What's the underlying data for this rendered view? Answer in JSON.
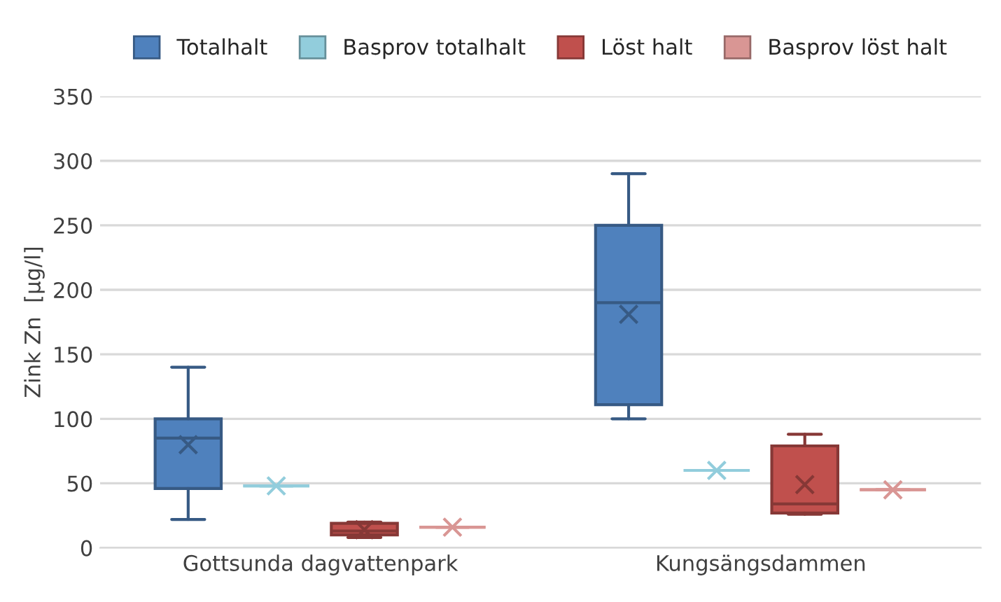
{
  "chart_data": {
    "type": "box",
    "ylabel": "Zink Zn  [µg/l]",
    "categories": [
      "Gottsunda dagvattenpark",
      "Kungsängsdammen"
    ],
    "series": [
      {
        "name": "Totalhalt",
        "color": "#4f81bd",
        "boxes": [
          {
            "low": 22,
            "q1": 46,
            "median": 85,
            "q3": 100,
            "high": 140,
            "mean": 80
          },
          {
            "low": 100,
            "q1": 111,
            "median": 190,
            "q3": 250,
            "high": 290,
            "mean": 181
          }
        ]
      },
      {
        "name": "Basprov totalhalt",
        "color": "#92cddc",
        "boxes": [
          {
            "low": 48,
            "q1": 48,
            "median": 48,
            "q3": 48,
            "high": 48,
            "mean": 48
          },
          {
            "low": 60,
            "q1": 60,
            "median": 60,
            "q3": 60,
            "high": 60,
            "mean": 60
          }
        ]
      },
      {
        "name": "Löst halt",
        "color": "#c0504d",
        "boxes": [
          {
            "low": 8,
            "q1": 10,
            "median": 13,
            "q3": 19,
            "high": 20,
            "mean": 14
          },
          {
            "low": 26,
            "q1": 27,
            "median": 34,
            "q3": 79,
            "high": 88,
            "mean": 49
          }
        ]
      },
      {
        "name": "Basprov löst halt",
        "color": "#d99694",
        "boxes": [
          {
            "low": 16,
            "q1": 16,
            "median": 16,
            "q3": 16,
            "high": 16,
            "mean": 16
          },
          {
            "low": 45,
            "q1": 45,
            "median": 45,
            "q3": 45,
            "high": 45,
            "mean": 45
          }
        ]
      }
    ],
    "ylim": [
      0,
      350
    ],
    "yticks": [
      0,
      50,
      100,
      150,
      200,
      250,
      300,
      350
    ],
    "grid": "y",
    "legend": "top"
  }
}
